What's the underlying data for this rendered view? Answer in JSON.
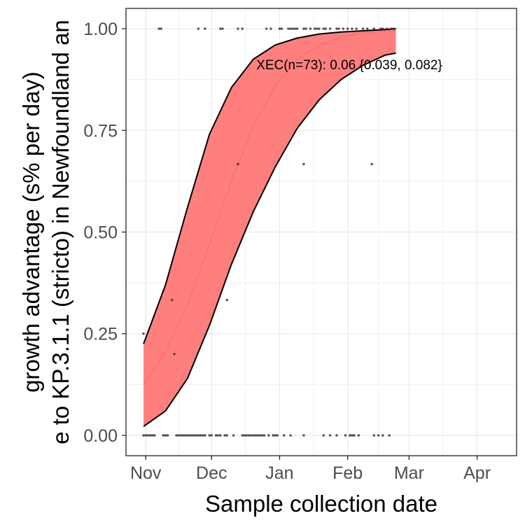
{
  "chart_data": {
    "type": "scatter",
    "title": "",
    "xlabel": "Sample collection date",
    "ylabel_lines": [
      "growth advantage (s% per day)",
      "e to KP.3.1.1 (stricto) in Newfoundland an"
    ],
    "annotation": "XEC(n=73): 0.06 {0.039, 0.082}",
    "x_ticks": [
      "Nov",
      "Dec",
      "Jan",
      "Feb",
      "Mar",
      "Apr"
    ],
    "x_tick_dates": [
      "2024-11-01",
      "2024-12-01",
      "2025-01-01",
      "2025-02-01",
      "2025-03-01",
      "2025-04-01"
    ],
    "xlim": [
      "2024-10-23",
      "2025-04-19"
    ],
    "y_ticks": [
      "0.00",
      "0.25",
      "0.50",
      "0.75",
      "1.00"
    ],
    "y_tick_values": [
      0,
      0.25,
      0.5,
      0.75,
      1.0
    ],
    "ylim": [
      -0.05,
      1.05
    ],
    "grid": true,
    "colors": {
      "fit_line": "#f8766d",
      "ribbon_fill": "#ff7f7f",
      "ribbon_border": "#000000",
      "points": "#333333",
      "grid": "#ebebeb",
      "panel_border": "#333333"
    },
    "fit": {
      "name": "XEC",
      "x": [
        "2024-10-31",
        "2024-11-10",
        "2024-11-20",
        "2024-11-30",
        "2024-12-10",
        "2024-12-20",
        "2024-12-30",
        "2025-01-09",
        "2025-01-19",
        "2025-01-29",
        "2025-02-08",
        "2025-02-18",
        "2025-02-23"
      ],
      "y": [
        0.125,
        0.205,
        0.32,
        0.47,
        0.625,
        0.76,
        0.86,
        0.925,
        0.96,
        0.979,
        0.989,
        0.994,
        0.996
      ],
      "lower": [
        0.022,
        0.06,
        0.14,
        0.27,
        0.42,
        0.55,
        0.66,
        0.755,
        0.825,
        0.875,
        0.91,
        0.935,
        0.94
      ],
      "upper": [
        0.225,
        0.37,
        0.56,
        0.74,
        0.855,
        0.925,
        0.96,
        0.977,
        0.987,
        0.992,
        0.995,
        0.998,
        1.0
      ]
    },
    "points": [
      {
        "x": "2024-10-31",
        "y": 0.25
      },
      {
        "x": "2024-11-13",
        "y": 0.333
      },
      {
        "x": "2024-11-14",
        "y": 0.2
      },
      {
        "x": "2024-12-08",
        "y": 0.333
      },
      {
        "x": "2024-12-13",
        "y": 0.667
      },
      {
        "x": "2025-01-12",
        "y": 0.667
      },
      {
        "x": "2025-02-12",
        "y": 0.667
      },
      {
        "x": "2024-11-07",
        "y": 1
      },
      {
        "x": "2024-11-08",
        "y": 1
      },
      {
        "x": "2024-11-25",
        "y": 1
      },
      {
        "x": "2024-11-28",
        "y": 1
      },
      {
        "x": "2024-12-05",
        "y": 1
      },
      {
        "x": "2024-12-06",
        "y": 1
      },
      {
        "x": "2024-12-13",
        "y": 1
      },
      {
        "x": "2024-12-15",
        "y": 1
      },
      {
        "x": "2024-12-26",
        "y": 1
      },
      {
        "x": "2024-12-28",
        "y": 1
      },
      {
        "x": "2025-01-01",
        "y": 1
      },
      {
        "x": "2025-01-02",
        "y": 1
      },
      {
        "x": "2025-01-05",
        "y": 1
      },
      {
        "x": "2025-01-06",
        "y": 1
      },
      {
        "x": "2025-01-07",
        "y": 1
      },
      {
        "x": "2025-01-08",
        "y": 1
      },
      {
        "x": "2025-01-09",
        "y": 1
      },
      {
        "x": "2025-01-12",
        "y": 1
      },
      {
        "x": "2025-01-13",
        "y": 1
      },
      {
        "x": "2025-01-15",
        "y": 1
      },
      {
        "x": "2025-01-17",
        "y": 1
      },
      {
        "x": "2025-01-18",
        "y": 1
      },
      {
        "x": "2025-01-19",
        "y": 1
      },
      {
        "x": "2025-01-21",
        "y": 1
      },
      {
        "x": "2025-01-22",
        "y": 1
      },
      {
        "x": "2025-01-24",
        "y": 1
      },
      {
        "x": "2025-01-27",
        "y": 1
      },
      {
        "x": "2025-01-28",
        "y": 1
      },
      {
        "x": "2025-01-30",
        "y": 1
      },
      {
        "x": "2025-02-01",
        "y": 1
      },
      {
        "x": "2025-02-03",
        "y": 1
      },
      {
        "x": "2025-02-05",
        "y": 1
      },
      {
        "x": "2025-02-08",
        "y": 1
      },
      {
        "x": "2025-02-10",
        "y": 1
      },
      {
        "x": "2025-02-13",
        "y": 1
      },
      {
        "x": "2025-02-16",
        "y": 1
      },
      {
        "x": "2025-02-17",
        "y": 1
      },
      {
        "x": "2025-02-19",
        "y": 1
      },
      {
        "x": "2025-02-21",
        "y": 1
      },
      {
        "x": "2025-02-22",
        "y": 1
      },
      {
        "x": "2024-10-31",
        "y": 0
      },
      {
        "x": "2024-11-01",
        "y": 0
      },
      {
        "x": "2024-11-02",
        "y": 0
      },
      {
        "x": "2024-11-03",
        "y": 0
      },
      {
        "x": "2024-11-04",
        "y": 0
      },
      {
        "x": "2024-11-05",
        "y": 0
      },
      {
        "x": "2024-11-09",
        "y": 0
      },
      {
        "x": "2024-11-10",
        "y": 0
      },
      {
        "x": "2024-11-11",
        "y": 0
      },
      {
        "x": "2024-11-15",
        "y": 0
      },
      {
        "x": "2024-11-16",
        "y": 0
      },
      {
        "x": "2024-11-17",
        "y": 0
      },
      {
        "x": "2024-11-18",
        "y": 0
      },
      {
        "x": "2024-11-19",
        "y": 0
      },
      {
        "x": "2024-11-20",
        "y": 0
      },
      {
        "x": "2024-11-21",
        "y": 0
      },
      {
        "x": "2024-11-22",
        "y": 0
      },
      {
        "x": "2024-11-23",
        "y": 0
      },
      {
        "x": "2024-11-24",
        "y": 0
      },
      {
        "x": "2024-11-25",
        "y": 0
      },
      {
        "x": "2024-11-26",
        "y": 0
      },
      {
        "x": "2024-11-27",
        "y": 0
      },
      {
        "x": "2024-11-28",
        "y": 0
      },
      {
        "x": "2024-11-30",
        "y": 0
      },
      {
        "x": "2024-12-01",
        "y": 0
      },
      {
        "x": "2024-12-03",
        "y": 0
      },
      {
        "x": "2024-12-04",
        "y": 0
      },
      {
        "x": "2024-12-05",
        "y": 0
      },
      {
        "x": "2024-12-07",
        "y": 0
      },
      {
        "x": "2024-12-08",
        "y": 0
      },
      {
        "x": "2024-12-11",
        "y": 0
      },
      {
        "x": "2024-12-15",
        "y": 0
      },
      {
        "x": "2024-12-16",
        "y": 0
      },
      {
        "x": "2024-12-17",
        "y": 0
      },
      {
        "x": "2024-12-18",
        "y": 0
      },
      {
        "x": "2024-12-19",
        "y": 0
      },
      {
        "x": "2024-12-20",
        "y": 0
      },
      {
        "x": "2024-12-21",
        "y": 0
      },
      {
        "x": "2024-12-22",
        "y": 0
      },
      {
        "x": "2024-12-23",
        "y": 0
      },
      {
        "x": "2024-12-24",
        "y": 0
      },
      {
        "x": "2024-12-25",
        "y": 0
      },
      {
        "x": "2024-12-27",
        "y": 0
      },
      {
        "x": "2024-12-29",
        "y": 0
      },
      {
        "x": "2024-12-30",
        "y": 0
      },
      {
        "x": "2024-12-31",
        "y": 0
      },
      {
        "x": "2025-01-03",
        "y": 0
      },
      {
        "x": "2025-01-06",
        "y": 0
      },
      {
        "x": "2025-01-12",
        "y": 0
      },
      {
        "x": "2025-01-21",
        "y": 0
      },
      {
        "x": "2025-01-24",
        "y": 0
      },
      {
        "x": "2025-01-27",
        "y": 0
      },
      {
        "x": "2025-01-31",
        "y": 0
      },
      {
        "x": "2025-02-02",
        "y": 0
      },
      {
        "x": "2025-02-03",
        "y": 0
      },
      {
        "x": "2025-02-04",
        "y": 0
      },
      {
        "x": "2025-02-06",
        "y": 0
      },
      {
        "x": "2025-02-13",
        "y": 0
      },
      {
        "x": "2025-02-15",
        "y": 0
      },
      {
        "x": "2025-02-17",
        "y": 0
      },
      {
        "x": "2025-02-20",
        "y": 0
      }
    ]
  }
}
